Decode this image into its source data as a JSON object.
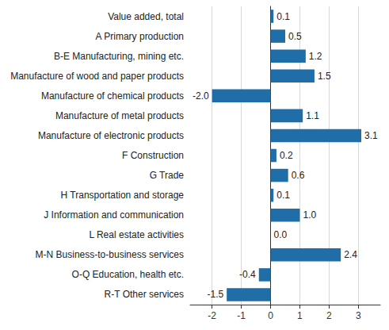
{
  "chart_data": {
    "type": "bar",
    "orientation": "horizontal",
    "categories": [
      "Value added, total",
      "A Primary production",
      "B-E Manufacturing, mining etc.",
      "Manufacture of wood and paper products",
      "Manufacture of chemical products",
      "Manufacture of metal products",
      "Manufacture of electronic products",
      "F Construction",
      "G Trade",
      "H Transportation and storage",
      "J Information and communication",
      "L Real estate activities",
      "M-N Business-to-business services",
      "O-Q Education, health etc.",
      "R-T Other services"
    ],
    "values": [
      0.1,
      0.5,
      1.2,
      1.5,
      -2.0,
      1.1,
      3.1,
      0.2,
      0.6,
      0.1,
      1.0,
      0.0,
      2.4,
      -0.4,
      -1.5
    ],
    "value_labels": [
      "0.1",
      "0.5",
      "1.2",
      "1.5",
      "-2.0",
      "1.1",
      "3.1",
      "0.2",
      "0.6",
      "0.1",
      "1.0",
      "0.0",
      "2.4",
      "-0.4",
      "-1.5"
    ],
    "color": "#1f6ea8",
    "xlim": [
      -2.75,
      3.75
    ],
    "xticks": [
      -2,
      -1,
      0,
      1,
      2,
      3
    ],
    "grid": true,
    "data_labels": true
  }
}
